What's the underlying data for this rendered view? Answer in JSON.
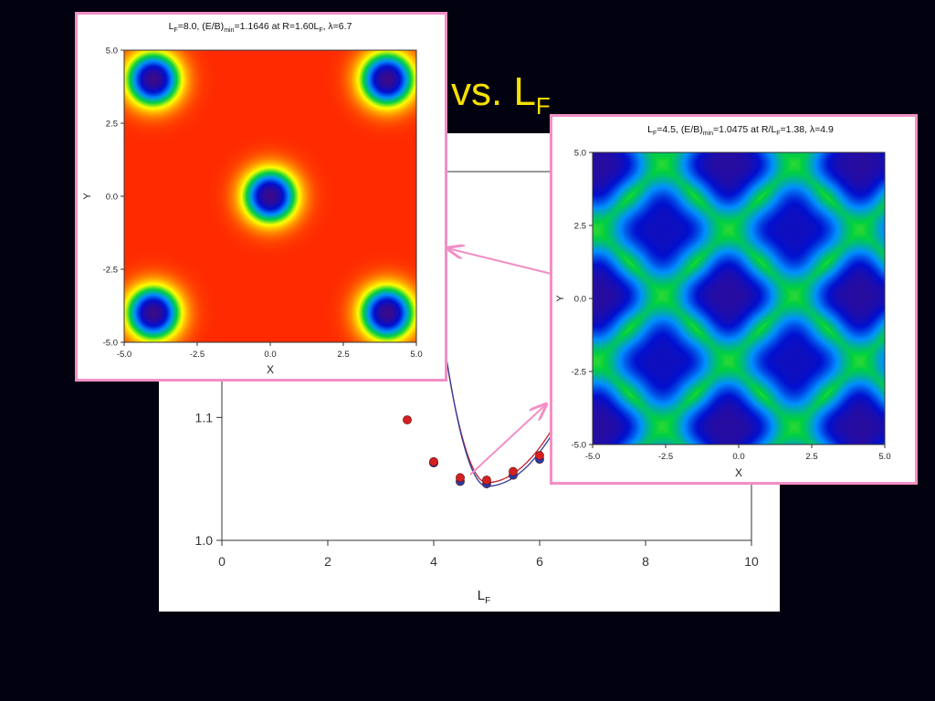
{
  "slide": {
    "title_prefix": "vs. L",
    "title_sub": "F"
  },
  "chart_data": [
    {
      "type": "line",
      "xlabel_main": "L",
      "xlabel_sub": "F",
      "ylabel": "",
      "xlim": [
        0,
        10
      ],
      "ylim": [
        1.0,
        1.3
      ],
      "x_ticks": [
        "0",
        "2",
        "4",
        "6",
        "8",
        "10"
      ],
      "y_ticks": [
        "1.0",
        "1.1"
      ],
      "series": [
        {
          "color": "#d42020",
          "x": [
            3.5,
            4.0,
            4.5,
            5.0,
            5.5,
            6.0
          ],
          "y": [
            1.098,
            1.064,
            1.051,
            1.049,
            1.056,
            1.069
          ]
        },
        {
          "color": "#2a3aa8",
          "x": [
            4.0,
            4.5,
            5.0,
            5.5,
            6.0
          ],
          "y": [
            1.063,
            1.048,
            1.046,
            1.053,
            1.066
          ]
        }
      ],
      "fit_curves_colors": [
        "#d42020",
        "#2a3aa8"
      ],
      "line_colors": {
        "fit_red": "#c02030",
        "fit_blue": "#303a9a",
        "arrow": "#f28fc6"
      }
    },
    {
      "type": "heatmap",
      "title": {
        "p1": "L",
        "s1": "F",
        "p2": "=8.0, (E/B)",
        "s2": "min",
        "p3": "=1.1646 at R=1.60L",
        "s3": "F",
        "p4": ", λ=6.7"
      },
      "xlabel": "X",
      "ylabel": "Y",
      "xlim": [
        -5.0,
        5.0
      ],
      "ylim": [
        -5.0,
        5.0
      ],
      "x_ticks": [
        "-5.0",
        "-2.5",
        "0.0",
        "2.5",
        "5.0"
      ],
      "y_ticks": [
        "5.0",
        "2.5",
        "0.0",
        "-2.5",
        "-5.0"
      ],
      "vortex_centers": [
        [
          -4,
          4
        ],
        [
          4,
          4
        ],
        [
          0,
          0
        ],
        [
          -4,
          -4
        ],
        [
          4,
          -4
        ]
      ],
      "vortex_radius": 0.95,
      "background_color": "#ff2a00"
    },
    {
      "type": "heatmap",
      "title": {
        "p1": "L",
        "s1": "F",
        "p2": "=4.5, (E/B)",
        "s2": "min",
        "p3": "=1.0475 at R/L",
        "s3": "F",
        "p4": "=1.38, λ=4.9"
      },
      "xlabel": "X",
      "ylabel": "Y",
      "xlim": [
        -5.0,
        5.0
      ],
      "ylim": [
        -5.0,
        5.0
      ],
      "x_ticks": [
        "-5.0",
        "-2.5",
        "0.0",
        "2.5",
        "5.0"
      ],
      "y_ticks": [
        "5.0",
        "2.5",
        "0.0",
        "-2.5",
        "-5.0"
      ],
      "lattice_period": 4.5,
      "colormap": [
        "#3a0a8a",
        "#0010d0",
        "#0090ff",
        "#00d040",
        "#ffff00",
        "#ff9000",
        "#ff1800"
      ]
    }
  ]
}
